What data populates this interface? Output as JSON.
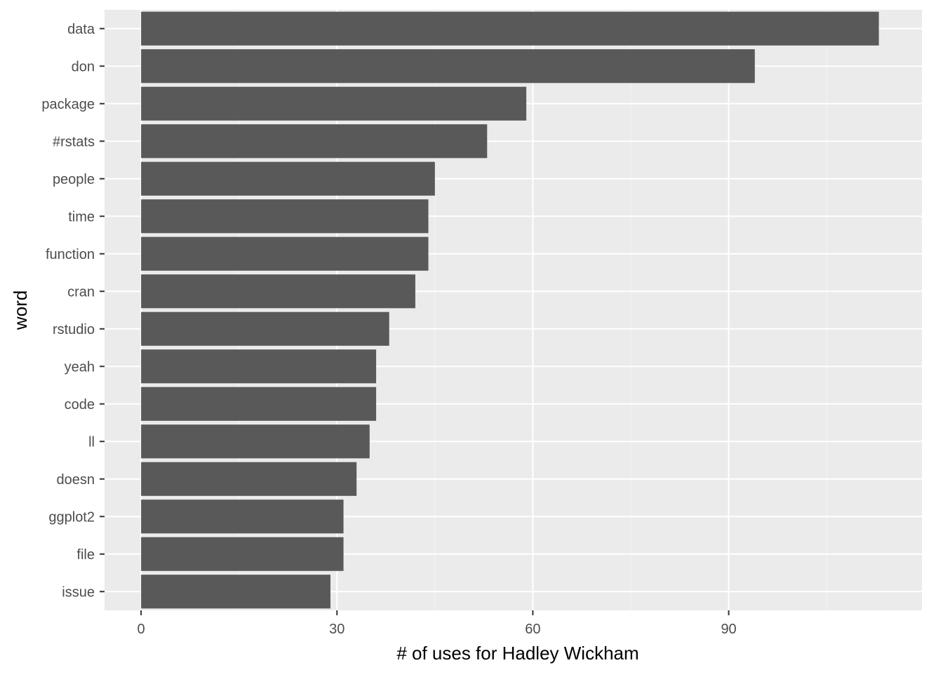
{
  "chart_data": {
    "type": "bar",
    "orientation": "horizontal",
    "title": "",
    "xlabel": "# of uses for Hadley Wickham",
    "ylabel": "word",
    "categories": [
      "data",
      "don",
      "package",
      "#rstats",
      "people",
      "time",
      "function",
      "cran",
      "rstudio",
      "yeah",
      "code",
      "ll",
      "doesn",
      "ggplot2",
      "file",
      "issue"
    ],
    "values": [
      113,
      94,
      59,
      53,
      45,
      44,
      44,
      42,
      38,
      36,
      36,
      35,
      33,
      31,
      31,
      29
    ],
    "xlim": [
      -5.6,
      119.6
    ],
    "xticks": [
      0,
      30,
      60,
      90
    ],
    "xtick_labels": [
      "0",
      "30",
      "60",
      "90"
    ],
    "grid": true,
    "colors": {
      "panel_background": "#ebebeb",
      "grid_major": "#ffffff",
      "grid_minor": "#f5f5f5",
      "bar_fill": "#595959",
      "tick_color": "#333333"
    }
  }
}
